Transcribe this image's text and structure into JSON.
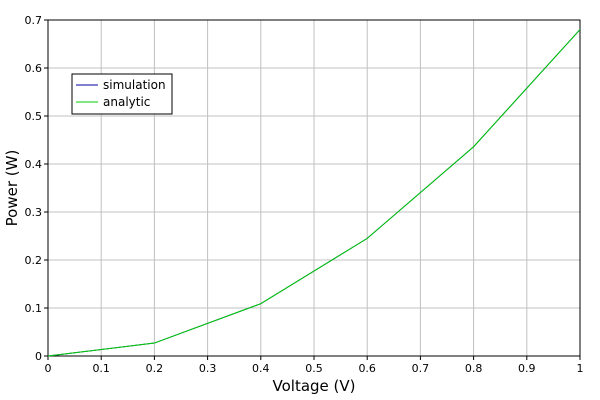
{
  "chart_data": {
    "type": "line",
    "xlabel": "Voltage (V)",
    "ylabel": "Power (W)",
    "xlim": [
      0,
      1
    ],
    "ylim": [
      0,
      0.7
    ],
    "grid": true,
    "legend_position": "top-left",
    "x_ticks": [
      "0",
      "0.1",
      "0.2",
      "0.3",
      "0.4",
      "0.5",
      "0.6",
      "0.7",
      "0.8",
      "0.9",
      "1"
    ],
    "y_ticks": [
      "0",
      "0.1",
      "0.2",
      "0.3",
      "0.4",
      "0.5",
      "0.6",
      "0.7"
    ],
    "series": [
      {
        "name": "simulation",
        "color": "#0000a0",
        "x": [
          0,
          0.2,
          0.4,
          0.6,
          0.8,
          1.0
        ],
        "values": [
          0,
          0.027,
          0.109,
          0.245,
          0.436,
          0.68
        ]
      },
      {
        "name": "analytic",
        "color": "#00d000",
        "x": [
          0,
          0.2,
          0.4,
          0.6,
          0.8,
          1.0
        ],
        "values": [
          0,
          0.027,
          0.109,
          0.245,
          0.436,
          0.68
        ]
      }
    ]
  }
}
